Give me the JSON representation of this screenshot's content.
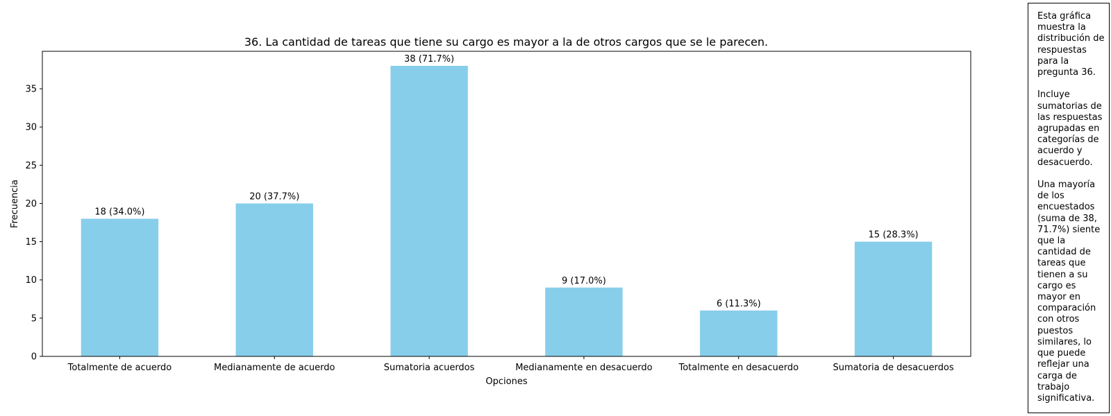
{
  "chart_data": {
    "type": "bar",
    "title": "36. La cantidad de tareas que tiene su cargo es mayor a la de otros cargos que se le parecen.",
    "xlabel": "Opciones",
    "ylabel": "Frecuencia",
    "ylim": [
      0,
      39.9
    ],
    "yticks": [
      0,
      5,
      10,
      15,
      20,
      25,
      30,
      35
    ],
    "categories": [
      "Totalmente de acuerdo",
      "Medianamente de acuerdo",
      "Sumatoria acuerdos",
      "Medianamente en desacuerdo",
      "Totalmente en desacuerdo",
      "Sumatoria de desacuerdos"
    ],
    "values": [
      18,
      20,
      38,
      9,
      6,
      15
    ],
    "bar_labels": [
      "18 (34.0%)",
      "20 (37.7%)",
      "38 (71.7%)",
      "9 (17.0%)",
      "6 (11.3%)",
      "15 (28.3%)"
    ],
    "bar_color": "#87ceeb",
    "grid": false,
    "legend": "none"
  },
  "note": {
    "text": "Esta gráfica\nmuestra la\ndistribución de\nrespuestas\npara la\npregunta 36.\n\nIncluye\nsumatorias de\nlas respuestas\nagrupadas en\ncategorías de\nacuerdo y\ndesacuerdo.\n\nUna mayoría\nde los\nencuestados\n(suma de 38,\n71.7%) siente\nque la\ncantidad de\ntareas que\ntienen a su\ncargo es\nmayor en\ncomparación\ncon otros\npuestos\nsimilares, lo\nque puede\nreflejar una\ncarga de\ntrabajo\nsignificativa."
  }
}
